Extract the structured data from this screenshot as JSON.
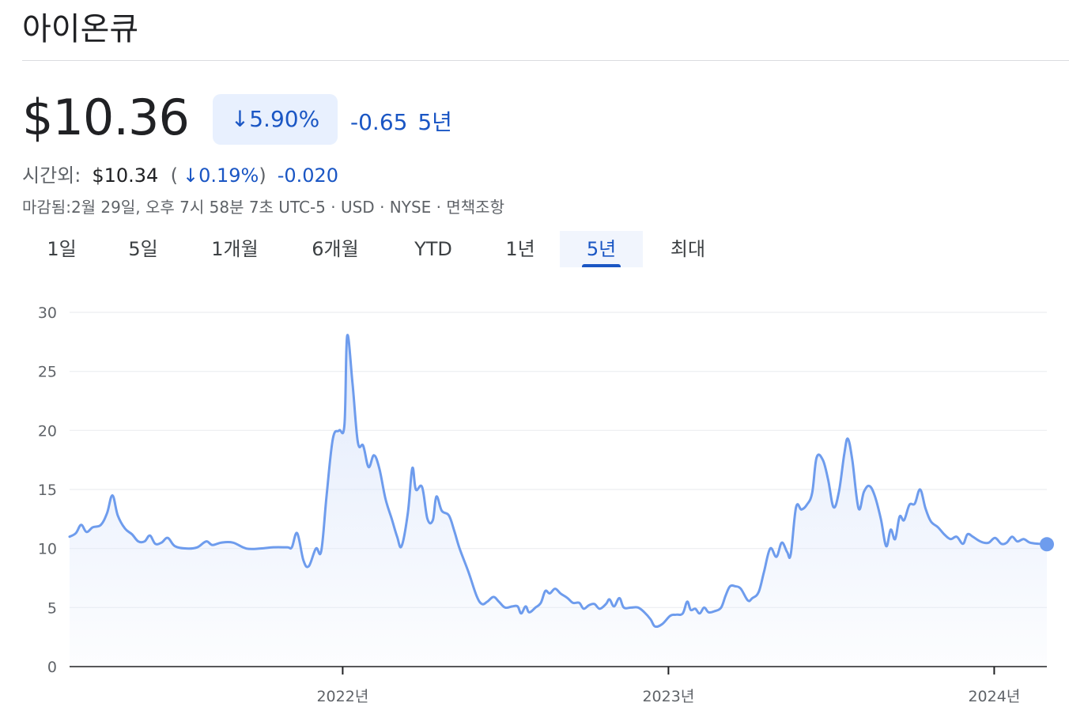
{
  "company_name": "아이온큐",
  "price": "$10.36",
  "change_percent": "↓5.90%",
  "change_abs": "-0.65",
  "change_period": "5년",
  "after_hours": {
    "label": "시간외:",
    "price": "$10.34",
    "paren_open": "(",
    "percent": "↓0.19%",
    "paren_close": ")",
    "abs": "-0.020"
  },
  "meta_line": "마감됨:2월 29일, 오후 7시 58분 7초 UTC-5 · USD · NYSE · 면책조항",
  "tabs": [
    {
      "label": "1일",
      "active": false
    },
    {
      "label": "5일",
      "active": false
    },
    {
      "label": "1개월",
      "active": false
    },
    {
      "label": "6개월",
      "active": false
    },
    {
      "label": "YTD",
      "active": false
    },
    {
      "label": "1년",
      "active": false
    },
    {
      "label": "5년",
      "active": true
    },
    {
      "label": "최대",
      "active": false
    }
  ],
  "colors": {
    "line": "#6e9ced",
    "fill": "#dde7fb",
    "accent": "#1a56c4",
    "grid": "#eceef1",
    "axis": "#202124"
  },
  "chart_data": {
    "type": "area",
    "ylim": [
      0,
      30
    ],
    "yticks": [
      0,
      5,
      10,
      15,
      20,
      25,
      30
    ],
    "xlim": [
      "2021-03-01",
      "2024-02-29"
    ],
    "xticks": [
      {
        "date": "2022-01-01",
        "label": "2022년"
      },
      {
        "date": "2023-01-01",
        "label": "2023년"
      },
      {
        "date": "2024-01-01",
        "label": "2024년"
      }
    ],
    "series": [
      {
        "points": [
          [
            "2021-03-01",
            11.0
          ],
          [
            "2021-03-08",
            11.3
          ],
          [
            "2021-03-14",
            12.0
          ],
          [
            "2021-03-20",
            11.4
          ],
          [
            "2021-03-27",
            11.8
          ],
          [
            "2021-04-05",
            12.0
          ],
          [
            "2021-04-12",
            13.0
          ],
          [
            "2021-04-18",
            14.5
          ],
          [
            "2021-04-24",
            12.8
          ],
          [
            "2021-05-02",
            11.7
          ],
          [
            "2021-05-10",
            11.2
          ],
          [
            "2021-05-17",
            10.6
          ],
          [
            "2021-05-24",
            10.6
          ],
          [
            "2021-05-30",
            11.1
          ],
          [
            "2021-06-05",
            10.4
          ],
          [
            "2021-06-12",
            10.5
          ],
          [
            "2021-06-19",
            10.9
          ],
          [
            "2021-06-27",
            10.2
          ],
          [
            "2021-07-10",
            10.0
          ],
          [
            "2021-07-22",
            10.1
          ],
          [
            "2021-08-01",
            10.6
          ],
          [
            "2021-08-08",
            10.3
          ],
          [
            "2021-08-18",
            10.5
          ],
          [
            "2021-08-31",
            10.5
          ],
          [
            "2021-09-15",
            10.0
          ],
          [
            "2021-10-01",
            10.0
          ],
          [
            "2021-10-15",
            10.1
          ],
          [
            "2021-10-31",
            10.1
          ],
          [
            "2021-11-05",
            10.1
          ],
          [
            "2021-11-11",
            11.3
          ],
          [
            "2021-11-18",
            9.0
          ],
          [
            "2021-11-24",
            8.5
          ],
          [
            "2021-12-02",
            10.0
          ],
          [
            "2021-12-08",
            9.8
          ],
          [
            "2021-12-14",
            14.5
          ],
          [
            "2021-12-21",
            19.3
          ],
          [
            "2021-12-28",
            20.0
          ],
          [
            "2022-01-03",
            20.5
          ],
          [
            "2022-01-06",
            28.0
          ],
          [
            "2022-01-12",
            24.0
          ],
          [
            "2022-01-18",
            19.0
          ],
          [
            "2022-01-24",
            18.7
          ],
          [
            "2022-01-30",
            16.9
          ],
          [
            "2022-02-05",
            17.9
          ],
          [
            "2022-02-11",
            16.8
          ],
          [
            "2022-02-18",
            14.2
          ],
          [
            "2022-02-25",
            12.5
          ],
          [
            "2022-03-03",
            11.0
          ],
          [
            "2022-03-08",
            10.2
          ],
          [
            "2022-03-15",
            13.0
          ],
          [
            "2022-03-20",
            16.8
          ],
          [
            "2022-03-24",
            15.0
          ],
          [
            "2022-03-31",
            15.2
          ],
          [
            "2022-04-06",
            12.5
          ],
          [
            "2022-04-12",
            12.4
          ],
          [
            "2022-04-16",
            14.4
          ],
          [
            "2022-04-22",
            13.2
          ],
          [
            "2022-04-30",
            12.8
          ],
          [
            "2022-05-06",
            11.5
          ],
          [
            "2022-05-12",
            10.0
          ],
          [
            "2022-05-22",
            8.0
          ],
          [
            "2022-05-31",
            6.0
          ],
          [
            "2022-06-06",
            5.3
          ],
          [
            "2022-06-12",
            5.5
          ],
          [
            "2022-06-19",
            5.9
          ],
          [
            "2022-06-25",
            5.5
          ],
          [
            "2022-07-02",
            5.0
          ],
          [
            "2022-07-10",
            5.1
          ],
          [
            "2022-07-16",
            5.1
          ],
          [
            "2022-07-20",
            4.5
          ],
          [
            "2022-07-25",
            5.1
          ],
          [
            "2022-07-29",
            4.6
          ],
          [
            "2022-08-05",
            5.0
          ],
          [
            "2022-08-11",
            5.4
          ],
          [
            "2022-08-16",
            6.4
          ],
          [
            "2022-08-21",
            6.2
          ],
          [
            "2022-08-27",
            6.6
          ],
          [
            "2022-09-02",
            6.2
          ],
          [
            "2022-09-10",
            5.8
          ],
          [
            "2022-09-16",
            5.4
          ],
          [
            "2022-09-23",
            5.4
          ],
          [
            "2022-09-28",
            4.9
          ],
          [
            "2022-10-04",
            5.2
          ],
          [
            "2022-10-10",
            5.3
          ],
          [
            "2022-10-16",
            4.9
          ],
          [
            "2022-10-23",
            5.3
          ],
          [
            "2022-10-27",
            5.7
          ],
          [
            "2022-11-01",
            5.1
          ],
          [
            "2022-11-07",
            5.8
          ],
          [
            "2022-11-12",
            5.0
          ],
          [
            "2022-11-20",
            5.0
          ],
          [
            "2022-11-28",
            5.0
          ],
          [
            "2022-12-05",
            4.6
          ],
          [
            "2022-12-12",
            4.0
          ],
          [
            "2022-12-17",
            3.4
          ],
          [
            "2022-12-25",
            3.6
          ],
          [
            "2023-01-03",
            4.3
          ],
          [
            "2023-01-10",
            4.4
          ],
          [
            "2023-01-17",
            4.5
          ],
          [
            "2023-01-22",
            5.5
          ],
          [
            "2023-01-26",
            4.8
          ],
          [
            "2023-01-31",
            4.9
          ],
          [
            "2023-02-05",
            4.5
          ],
          [
            "2023-02-10",
            5.0
          ],
          [
            "2023-02-15",
            4.6
          ],
          [
            "2023-02-22",
            4.7
          ],
          [
            "2023-03-01",
            5.0
          ],
          [
            "2023-03-06",
            6.0
          ],
          [
            "2023-03-11",
            6.8
          ],
          [
            "2023-03-17",
            6.8
          ],
          [
            "2023-03-23",
            6.6
          ],
          [
            "2023-03-31",
            5.6
          ],
          [
            "2023-04-05",
            5.8
          ],
          [
            "2023-04-12",
            6.3
          ],
          [
            "2023-04-18",
            8.0
          ],
          [
            "2023-04-25",
            10.0
          ],
          [
            "2023-05-02",
            9.3
          ],
          [
            "2023-05-08",
            10.5
          ],
          [
            "2023-05-14",
            9.7
          ],
          [
            "2023-05-18",
            9.5
          ],
          [
            "2023-05-24",
            13.5
          ],
          [
            "2023-05-30",
            13.3
          ],
          [
            "2023-06-05",
            13.7
          ],
          [
            "2023-06-11",
            14.7
          ],
          [
            "2023-06-16",
            17.7
          ],
          [
            "2023-06-23",
            17.5
          ],
          [
            "2023-06-29",
            15.8
          ],
          [
            "2023-07-05",
            13.5
          ],
          [
            "2023-07-11",
            14.8
          ],
          [
            "2023-07-17",
            18.0
          ],
          [
            "2023-07-21",
            19.3
          ],
          [
            "2023-07-26",
            17.5
          ],
          [
            "2023-08-02",
            13.4
          ],
          [
            "2023-08-08",
            14.8
          ],
          [
            "2023-08-14",
            15.3
          ],
          [
            "2023-08-20",
            14.5
          ],
          [
            "2023-08-27",
            12.5
          ],
          [
            "2023-09-02",
            10.2
          ],
          [
            "2023-09-07",
            11.6
          ],
          [
            "2023-09-12",
            10.8
          ],
          [
            "2023-09-17",
            12.7
          ],
          [
            "2023-09-22",
            12.4
          ],
          [
            "2023-09-28",
            13.7
          ],
          [
            "2023-10-04",
            13.8
          ],
          [
            "2023-10-10",
            15.0
          ],
          [
            "2023-10-16",
            13.4
          ],
          [
            "2023-10-22",
            12.3
          ],
          [
            "2023-10-30",
            11.8
          ],
          [
            "2023-11-06",
            11.2
          ],
          [
            "2023-11-13",
            10.8
          ],
          [
            "2023-11-20",
            11.0
          ],
          [
            "2023-11-27",
            10.4
          ],
          [
            "2023-12-02",
            11.2
          ],
          [
            "2023-12-08",
            11.0
          ],
          [
            "2023-12-14",
            10.7
          ],
          [
            "2023-12-20",
            10.5
          ],
          [
            "2023-12-26",
            10.5
          ],
          [
            "2024-01-02",
            10.9
          ],
          [
            "2024-01-09",
            10.4
          ],
          [
            "2024-01-15",
            10.5
          ],
          [
            "2024-01-21",
            11.0
          ],
          [
            "2024-01-27",
            10.6
          ],
          [
            "2024-02-03",
            10.8
          ],
          [
            "2024-02-10",
            10.5
          ],
          [
            "2024-02-20",
            10.4
          ],
          [
            "2024-02-29",
            10.36
          ]
        ]
      }
    ],
    "grid": true,
    "last_point_marker": true
  }
}
